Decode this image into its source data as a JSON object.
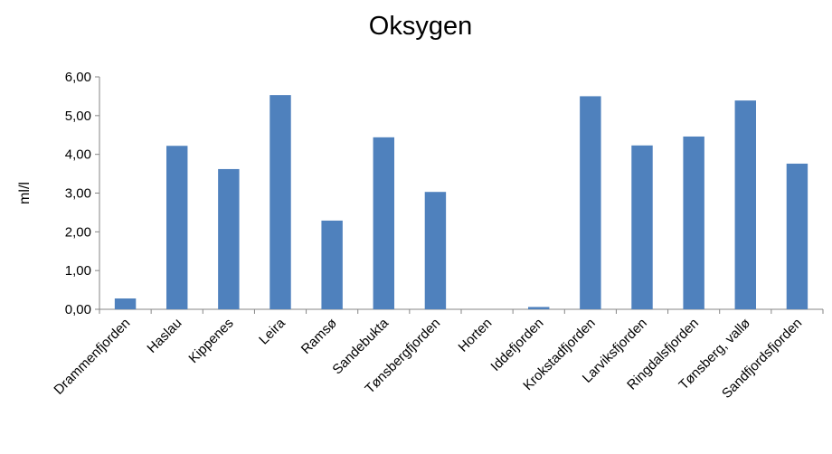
{
  "chart_data": {
    "type": "bar",
    "title": "Oksygen",
    "xlabel": "",
    "ylabel": "ml/l",
    "ylim": [
      0,
      6
    ],
    "yticks": [
      "0,00",
      "1,00",
      "2,00",
      "3,00",
      "4,00",
      "5,00",
      "6,00"
    ],
    "grid": false,
    "legend": "none",
    "categories": [
      "Drammenfjorden",
      "Haslau",
      "Kippenes",
      "Leira",
      "Ramsø",
      "Sandebukta",
      "Tønsbergfjorden",
      "Horten",
      "Iddefjorden",
      "Krokstadfjorden",
      "Larviksfjorden",
      "Ringdalsfjorden",
      "Tønsberg, vallø",
      "Sandfjordsfjorden"
    ],
    "values": [
      0.28,
      4.22,
      3.62,
      5.53,
      2.29,
      4.44,
      3.03,
      0.0,
      0.06,
      5.5,
      4.23,
      4.46,
      5.39,
      3.76
    ],
    "bar_color": "#4f81bd"
  }
}
